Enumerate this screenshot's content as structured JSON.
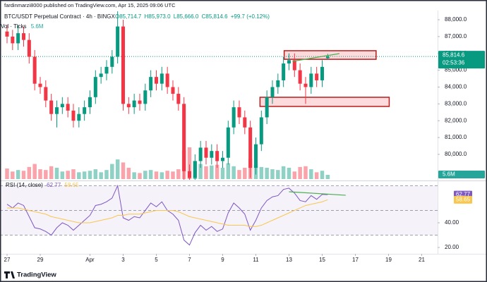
{
  "header": {
    "author_line": "fardinmarzi8000 published on TradingView.com, Apr 15, 2025 09:06 UTC",
    "footer": "TradingView"
  },
  "chart_data": [
    {
      "type": "candlestick",
      "title": "BTC/USDT Perpetual Contract · 4h · BINGX",
      "ohlc_labels": [
        "O85,714.7",
        "H85,973.0",
        "L85,666.0",
        "C85,814.6",
        "+99.7 (+0.12%)"
      ],
      "up_color": "#089981",
      "down_color": "#f23645",
      "x": [
        0,
        8,
        16,
        24,
        32,
        40,
        48,
        56,
        64,
        72,
        80,
        88,
        96,
        104,
        112,
        120,
        128,
        136,
        144,
        152,
        160,
        168,
        176,
        184,
        192,
        200,
        208,
        216,
        224,
        232,
        240,
        248,
        256,
        264,
        272,
        280,
        288,
        296,
        304,
        312,
        320,
        328,
        336,
        344,
        352,
        360,
        368,
        376,
        384,
        392,
        400,
        408,
        416,
        424,
        432,
        440,
        448,
        456,
        464
      ],
      "open": [
        87300,
        87000,
        86600,
        87200,
        86800,
        85800,
        84200,
        84000,
        83200,
        82400,
        82800,
        83000,
        82600,
        82000,
        82400,
        82800,
        83400,
        84600,
        84800,
        85200,
        85800,
        87600,
        83000,
        82800,
        83200,
        83000,
        83800,
        84600,
        84200,
        84800,
        84000,
        83600,
        83000,
        79000,
        78600,
        79600,
        80400,
        79800,
        80200,
        79600,
        79800,
        81600,
        82800,
        82200,
        81600,
        79200,
        80600,
        82200,
        83400,
        84000,
        84400,
        85400,
        85600,
        85000,
        84200,
        84000,
        84800,
        84400,
        85714.7
      ],
      "high": [
        87700,
        87400,
        87700,
        87600,
        87200,
        86200,
        84600,
        84400,
        83600,
        83200,
        83400,
        83400,
        83000,
        82800,
        83200,
        83800,
        85000,
        85200,
        85600,
        86200,
        88500,
        88000,
        83400,
        83600,
        83600,
        84200,
        85000,
        85000,
        85200,
        85200,
        84400,
        84000,
        83400,
        79400,
        80000,
        80800,
        80800,
        80600,
        80600,
        80200,
        82000,
        83200,
        83200,
        82600,
        82000,
        81000,
        82600,
        83800,
        84400,
        84800,
        85800,
        86000,
        86000,
        85400,
        84600,
        85200,
        85200,
        85600,
        85973
      ],
      "low": [
        86600,
        86200,
        86200,
        86400,
        85400,
        83800,
        83600,
        82800,
        82000,
        81600,
        82400,
        82200,
        81600,
        81600,
        82000,
        82400,
        83000,
        84200,
        84400,
        84800,
        85400,
        82600,
        82400,
        82400,
        82600,
        82600,
        83400,
        83800,
        83800,
        83600,
        83200,
        82600,
        78200,
        77200,
        78200,
        79200,
        79400,
        79400,
        79200,
        79200,
        79400,
        81200,
        81800,
        81200,
        78600,
        78800,
        80200,
        81800,
        83000,
        83600,
        84000,
        85000,
        84600,
        83800,
        83000,
        83600,
        84000,
        84000,
        85666
      ],
      "close": [
        87000,
        86600,
        87200,
        86800,
        85800,
        84200,
        84000,
        83200,
        82400,
        82800,
        83000,
        82600,
        82000,
        82400,
        82800,
        83400,
        84600,
        84800,
        85200,
        85800,
        87600,
        83000,
        82800,
        83200,
        83000,
        83800,
        84600,
        84200,
        84800,
        84000,
        83600,
        83000,
        79000,
        78600,
        79600,
        80400,
        79800,
        80200,
        79600,
        79800,
        81600,
        82800,
        82200,
        81600,
        79200,
        80600,
        82200,
        83400,
        84000,
        84400,
        85400,
        85600,
        85000,
        84200,
        84000,
        84800,
        84400,
        85200,
        85814.6
      ],
      "last_close_label": "85,814.6",
      "countdown": "02:53:36",
      "volume": {
        "name": "Vol · Ticks",
        "color": "#26a69a",
        "values": [
          14,
          10,
          12,
          11,
          16,
          20,
          13,
          12,
          17,
          15,
          10,
          11,
          13,
          9,
          10,
          11,
          13,
          9,
          12,
          20,
          26,
          22,
          15,
          9,
          8,
          11,
          12,
          10,
          9,
          11,
          10,
          13,
          38,
          42,
          24,
          20,
          17,
          18,
          19,
          15,
          21,
          17,
          12,
          15,
          27,
          19,
          16,
          15,
          13,
          12,
          17,
          15,
          10,
          16,
          17,
          13,
          9,
          11,
          5.6
        ],
        "last_label": "5.6M"
      },
      "zones": [
        {
          "x": [
            401,
            534
          ],
          "y": [
            85650,
            86160
          ]
        },
        {
          "x": [
            366,
            553
          ],
          "y": [
            82848,
            83393
          ]
        }
      ],
      "trendlines": [
        {
          "x": [
            413,
            481
          ],
          "y": [
            85528,
            85990
          ],
          "color": "#4caf50"
        }
      ],
      "xlim": [
        -10.2,
        623
      ],
      "xticks": [
        {
          "value": 0,
          "label": "27"
        },
        {
          "value": 48,
          "label": "29"
        },
        {
          "value": 120,
          "label": "Apr"
        },
        {
          "value": 168,
          "label": "3"
        },
        {
          "value": 216,
          "label": "5"
        },
        {
          "value": 264,
          "label": "7"
        },
        {
          "value": 312,
          "label": "9"
        },
        {
          "value": 360,
          "label": "11"
        },
        {
          "value": 408,
          "label": "13"
        },
        {
          "value": 456,
          "label": "15"
        },
        {
          "value": 504,
          "label": "17"
        },
        {
          "value": 552,
          "label": "19"
        },
        {
          "value": 600,
          "label": "21"
        }
      ],
      "ylim": [
        78490,
        88545
      ],
      "yticks": [
        {
          "value": 80000,
          "label": "80,000.0"
        },
        {
          "value": 81000,
          "label": "81,000.0"
        },
        {
          "value": 82000,
          "label": "82,000.0"
        },
        {
          "value": 83000,
          "label": "83,000.0"
        },
        {
          "value": 84000,
          "label": "84,000.0"
        },
        {
          "value": 85000,
          "label": "85,000.0"
        },
        {
          "value": 86000,
          "label": "86,000.0"
        },
        {
          "value": 87000,
          "label": "87,000.0"
        },
        {
          "value": 88000,
          "label": "88,000.0"
        }
      ]
    },
    {
      "type": "line",
      "title": "RSI (14, close)",
      "x": [
        0,
        8,
        16,
        24,
        32,
        40,
        48,
        56,
        64,
        72,
        80,
        88,
        96,
        104,
        112,
        120,
        128,
        136,
        144,
        152,
        160,
        168,
        176,
        184,
        192,
        200,
        208,
        216,
        224,
        232,
        240,
        248,
        256,
        264,
        272,
        280,
        288,
        296,
        304,
        312,
        320,
        328,
        336,
        344,
        352,
        360,
        368,
        376,
        384,
        392,
        400,
        408,
        416,
        424,
        432,
        440,
        448,
        456,
        464
      ],
      "series": [
        {
          "color": "#7e57c2",
          "values": [
            55,
            52,
            56,
            54,
            45,
            36,
            35,
            33,
            30,
            36,
            40,
            38,
            34,
            38,
            42,
            46,
            54,
            55,
            57,
            60,
            70,
            44,
            42,
            45,
            44,
            50,
            56,
            53,
            57,
            50,
            47,
            42,
            26,
            22,
            32,
            38,
            34,
            37,
            33,
            35,
            48,
            56,
            52,
            47,
            34,
            42,
            52,
            58,
            61,
            62,
            67,
            68,
            64,
            58,
            57,
            62,
            59,
            63,
            62.77
          ]
        },
        {
          "color": "#f9c74f",
          "values": [
            52,
            52,
            52,
            51,
            50,
            49,
            48,
            47,
            45,
            44,
            43,
            42,
            41,
            40,
            40,
            40,
            41,
            42,
            43,
            44,
            46,
            46,
            47,
            47,
            47,
            48,
            49,
            50,
            50,
            50,
            50,
            49,
            47,
            45,
            44,
            43,
            42,
            41,
            40,
            39,
            38,
            38,
            38,
            38,
            37,
            37,
            38,
            40,
            42,
            44,
            46,
            48,
            50,
            52,
            54,
            55,
            56,
            57,
            58.65
          ]
        }
      ],
      "bands": [
        70,
        50,
        30
      ],
      "trendlines": [
        {
          "x": [
            408,
            490
          ],
          "y": [
            65.1,
            62.3
          ],
          "color": "#4caf50"
        }
      ],
      "xlim": [
        -10.2,
        623
      ],
      "ylim": [
        14.9,
        73.1
      ],
      "yticks": [
        {
          "value": 20,
          "label": "20.00"
        },
        {
          "value": 40,
          "label": "40.00"
        }
      ]
    }
  ]
}
